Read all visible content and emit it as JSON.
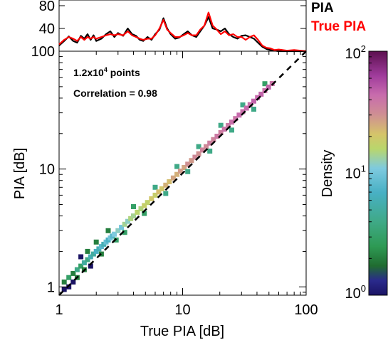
{
  "chart_data": [
    {
      "type": "line",
      "panel": "top-histogram",
      "ylim": [
        0,
        80
      ],
      "yticks": [
        "40",
        "80"
      ],
      "legend_placement": "top-right",
      "x_scale": "log",
      "xlim": [
        1,
        100
      ],
      "series": [
        {
          "name": "PIA",
          "color": "#000000",
          "points": [
            [
              1.0,
              10
            ],
            [
              1.1,
              18
            ],
            [
              1.2,
              26
            ],
            [
              1.3,
              18
            ],
            [
              1.4,
              15
            ],
            [
              1.5,
              27
            ],
            [
              1.6,
              22
            ],
            [
              1.7,
              30
            ],
            [
              1.8,
              20
            ],
            [
              1.9,
              28
            ],
            [
              2.0,
              18
            ],
            [
              2.2,
              22
            ],
            [
              2.4,
              30
            ],
            [
              2.6,
              35
            ],
            [
              2.8,
              25
            ],
            [
              3.0,
              32
            ],
            [
              3.3,
              27
            ],
            [
              3.6,
              40
            ],
            [
              3.9,
              30
            ],
            [
              4.2,
              27
            ],
            [
              4.5,
              20
            ],
            [
              4.8,
              18
            ],
            [
              5.2,
              25
            ],
            [
              5.6,
              20
            ],
            [
              6.0,
              30
            ],
            [
              6.5,
              38
            ],
            [
              7.0,
              58
            ],
            [
              7.5,
              40
            ],
            [
              8.0,
              30
            ],
            [
              8.7,
              22
            ],
            [
              9.4,
              24
            ],
            [
              10.2,
              30
            ],
            [
              11.0,
              35
            ],
            [
              11.9,
              28
            ],
            [
              12.9,
              25
            ],
            [
              13.9,
              35
            ],
            [
              15.0,
              45
            ],
            [
              16.2,
              60
            ],
            [
              17.5,
              40
            ],
            [
              18.9,
              38
            ],
            [
              20.4,
              35
            ],
            [
              22.0,
              40
            ],
            [
              23.8,
              30
            ],
            [
              25.7,
              25
            ],
            [
              27.8,
              22
            ],
            [
              30.0,
              27
            ],
            [
              32.4,
              28
            ],
            [
              35.0,
              25
            ],
            [
              37.8,
              22
            ],
            [
              40.8,
              15
            ],
            [
              44.1,
              8
            ],
            [
              47.6,
              4
            ],
            [
              51.4,
              2
            ],
            [
              55.5,
              1
            ],
            [
              60,
              0
            ],
            [
              70,
              0
            ],
            [
              80,
              0
            ],
            [
              90,
              0
            ],
            [
              100,
              0
            ]
          ]
        },
        {
          "name": "True PIA",
          "color": "#ff0000",
          "points": [
            [
              1.0,
              12
            ],
            [
              1.1,
              20
            ],
            [
              1.2,
              25
            ],
            [
              1.3,
              22
            ],
            [
              1.4,
              18
            ],
            [
              1.5,
              25
            ],
            [
              1.6,
              20
            ],
            [
              1.7,
              25
            ],
            [
              1.8,
              22
            ],
            [
              1.9,
              25
            ],
            [
              2.0,
              22
            ],
            [
              2.2,
              25
            ],
            [
              2.4,
              28
            ],
            [
              2.6,
              30
            ],
            [
              2.8,
              28
            ],
            [
              3.0,
              30
            ],
            [
              3.3,
              28
            ],
            [
              3.6,
              35
            ],
            [
              3.9,
              28
            ],
            [
              4.2,
              25
            ],
            [
              4.5,
              22
            ],
            [
              4.8,
              20
            ],
            [
              5.2,
              22
            ],
            [
              5.6,
              22
            ],
            [
              6.0,
              28
            ],
            [
              6.5,
              40
            ],
            [
              7.0,
              55
            ],
            [
              7.5,
              38
            ],
            [
              8.0,
              32
            ],
            [
              8.7,
              25
            ],
            [
              9.4,
              25
            ],
            [
              10.2,
              28
            ],
            [
              11.0,
              32
            ],
            [
              11.9,
              28
            ],
            [
              12.9,
              28
            ],
            [
              13.9,
              38
            ],
            [
              15.0,
              45
            ],
            [
              16.2,
              68
            ],
            [
              17.5,
              45
            ],
            [
              18.9,
              38
            ],
            [
              20.4,
              30
            ],
            [
              22.0,
              35
            ],
            [
              23.8,
              28
            ],
            [
              25.7,
              30
            ],
            [
              27.8,
              25
            ],
            [
              30.0,
              25
            ],
            [
              32.4,
              20
            ],
            [
              35.0,
              25
            ],
            [
              37.8,
              28
            ],
            [
              40.8,
              20
            ],
            [
              44.1,
              10
            ],
            [
              47.6,
              6
            ],
            [
              51.4,
              5
            ],
            [
              55.5,
              2
            ],
            [
              60,
              3
            ],
            [
              70,
              1
            ],
            [
              80,
              2
            ],
            [
              90,
              1
            ],
            [
              100,
              0
            ]
          ]
        }
      ]
    },
    {
      "type": "heatmap",
      "panel": "main-density",
      "xlabel": "True PIA [dB]",
      "ylabel": "PIA [dB]",
      "x_scale": "log",
      "y_scale": "log",
      "xlim": [
        1,
        100
      ],
      "ylim": [
        0.85,
        100
      ],
      "xticks": [
        "1",
        "10",
        "100"
      ],
      "yticks": [
        "1",
        "10",
        "100"
      ],
      "reference_line": "1:1 dashed",
      "annotations": {
        "points_prefix": "1.2x10",
        "points_exponent": "4",
        "points_suffix": " points",
        "correlation": "Correlation = 0.98"
      },
      "cells": [
        {
          "x": 1.1,
          "y": 0.95,
          "d": 1
        },
        {
          "x": 1.1,
          "y": 1.1,
          "d": 2
        },
        {
          "x": 1.2,
          "y": 1.0,
          "d": 1
        },
        {
          "x": 1.2,
          "y": 1.2,
          "d": 3
        },
        {
          "x": 1.3,
          "y": 1.3,
          "d": 2
        },
        {
          "x": 1.3,
          "y": 1.1,
          "d": 1
        },
        {
          "x": 1.4,
          "y": 1.4,
          "d": 4
        },
        {
          "x": 1.4,
          "y": 1.2,
          "d": 2
        },
        {
          "x": 1.5,
          "y": 1.5,
          "d": 3
        },
        {
          "x": 1.5,
          "y": 1.8,
          "d": 1
        },
        {
          "x": 1.6,
          "y": 1.6,
          "d": 5
        },
        {
          "x": 1.6,
          "y": 1.4,
          "d": 2
        },
        {
          "x": 1.7,
          "y": 1.7,
          "d": 4
        },
        {
          "x": 1.7,
          "y": 2.0,
          "d": 2
        },
        {
          "x": 1.8,
          "y": 1.8,
          "d": 6
        },
        {
          "x": 1.8,
          "y": 1.5,
          "d": 1
        },
        {
          "x": 1.9,
          "y": 1.9,
          "d": 5
        },
        {
          "x": 2.0,
          "y": 2.0,
          "d": 7
        },
        {
          "x": 2.0,
          "y": 2.4,
          "d": 2
        },
        {
          "x": 2.1,
          "y": 2.1,
          "d": 6
        },
        {
          "x": 2.2,
          "y": 2.2,
          "d": 8
        },
        {
          "x": 2.2,
          "y": 1.9,
          "d": 2
        },
        {
          "x": 2.3,
          "y": 2.3,
          "d": 6
        },
        {
          "x": 2.4,
          "y": 2.4,
          "d": 9
        },
        {
          "x": 2.5,
          "y": 2.5,
          "d": 7
        },
        {
          "x": 2.5,
          "y": 3.0,
          "d": 2
        },
        {
          "x": 2.6,
          "y": 2.6,
          "d": 10
        },
        {
          "x": 2.7,
          "y": 2.7,
          "d": 8
        },
        {
          "x": 2.8,
          "y": 2.8,
          "d": 11
        },
        {
          "x": 2.9,
          "y": 2.5,
          "d": 3
        },
        {
          "x": 3.0,
          "y": 3.0,
          "d": 12
        },
        {
          "x": 3.2,
          "y": 3.2,
          "d": 10
        },
        {
          "x": 3.4,
          "y": 3.4,
          "d": 14
        },
        {
          "x": 3.4,
          "y": 2.9,
          "d": 3
        },
        {
          "x": 3.6,
          "y": 3.6,
          "d": 12
        },
        {
          "x": 3.8,
          "y": 3.8,
          "d": 15
        },
        {
          "x": 4.0,
          "y": 4.0,
          "d": 14
        },
        {
          "x": 4.0,
          "y": 4.8,
          "d": 3
        },
        {
          "x": 4.3,
          "y": 4.3,
          "d": 16
        },
        {
          "x": 4.6,
          "y": 4.6,
          "d": 15
        },
        {
          "x": 4.9,
          "y": 4.9,
          "d": 18
        },
        {
          "x": 4.9,
          "y": 4.2,
          "d": 3
        },
        {
          "x": 5.2,
          "y": 5.2,
          "d": 17
        },
        {
          "x": 5.6,
          "y": 5.6,
          "d": 20
        },
        {
          "x": 6.0,
          "y": 6.0,
          "d": 18
        },
        {
          "x": 6.0,
          "y": 7.0,
          "d": 4
        },
        {
          "x": 6.4,
          "y": 6.4,
          "d": 22
        },
        {
          "x": 6.8,
          "y": 6.8,
          "d": 20
        },
        {
          "x": 7.3,
          "y": 7.3,
          "d": 24
        },
        {
          "x": 7.3,
          "y": 6.2,
          "d": 4
        },
        {
          "x": 7.8,
          "y": 7.8,
          "d": 22
        },
        {
          "x": 8.4,
          "y": 8.4,
          "d": 26
        },
        {
          "x": 9.0,
          "y": 9.0,
          "d": 24
        },
        {
          "x": 9.0,
          "y": 10.5,
          "d": 4
        },
        {
          "x": 9.6,
          "y": 9.6,
          "d": 28
        },
        {
          "x": 10.3,
          "y": 10.3,
          "d": 26
        },
        {
          "x": 11.0,
          "y": 11.0,
          "d": 30
        },
        {
          "x": 11.0,
          "y": 9.5,
          "d": 4
        },
        {
          "x": 11.8,
          "y": 11.8,
          "d": 28
        },
        {
          "x": 12.6,
          "y": 12.6,
          "d": 32
        },
        {
          "x": 13.5,
          "y": 13.5,
          "d": 30
        },
        {
          "x": 13.5,
          "y": 15.5,
          "d": 4
        },
        {
          "x": 14.5,
          "y": 14.5,
          "d": 34
        },
        {
          "x": 15.5,
          "y": 15.5,
          "d": 32
        },
        {
          "x": 16.6,
          "y": 16.6,
          "d": 36
        },
        {
          "x": 16.6,
          "y": 14.2,
          "d": 4
        },
        {
          "x": 17.8,
          "y": 17.8,
          "d": 34
        },
        {
          "x": 19.0,
          "y": 19.0,
          "d": 38
        },
        {
          "x": 20.4,
          "y": 20.4,
          "d": 36
        },
        {
          "x": 20.4,
          "y": 23.5,
          "d": 4
        },
        {
          "x": 21.8,
          "y": 21.8,
          "d": 40
        },
        {
          "x": 23.4,
          "y": 23.4,
          "d": 38
        },
        {
          "x": 25.0,
          "y": 25.0,
          "d": 42
        },
        {
          "x": 25.0,
          "y": 21.4,
          "d": 4
        },
        {
          "x": 26.8,
          "y": 26.8,
          "d": 40
        },
        {
          "x": 28.7,
          "y": 28.7,
          "d": 44
        },
        {
          "x": 30.7,
          "y": 30.7,
          "d": 42
        },
        {
          "x": 30.7,
          "y": 35.0,
          "d": 4
        },
        {
          "x": 32.9,
          "y": 32.9,
          "d": 44
        },
        {
          "x": 35.2,
          "y": 35.2,
          "d": 42
        },
        {
          "x": 37.7,
          "y": 37.7,
          "d": 46
        },
        {
          "x": 37.7,
          "y": 32.2,
          "d": 4
        },
        {
          "x": 40.4,
          "y": 40.4,
          "d": 44
        },
        {
          "x": 43.2,
          "y": 43.2,
          "d": 46
        },
        {
          "x": 46.3,
          "y": 46.3,
          "d": 42
        },
        {
          "x": 46.3,
          "y": 53.0,
          "d": 3
        },
        {
          "x": 49.6,
          "y": 49.6,
          "d": 46
        },
        {
          "x": 53.1,
          "y": 53.1,
          "d": 40
        }
      ]
    }
  ],
  "colorbar": {
    "label": "Density",
    "scale": "log",
    "ticks": [
      {
        "base": "10",
        "exp": "2"
      },
      {
        "base": "10",
        "exp": "1"
      },
      {
        "base": "10",
        "exp": "0"
      }
    ]
  }
}
